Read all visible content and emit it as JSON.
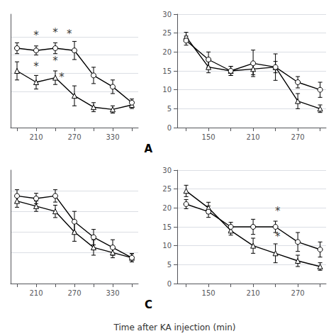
{
  "chart_data": [
    {
      "type": "line",
      "title": "A",
      "x": [
        180,
        210,
        240,
        270,
        300,
        330,
        360
      ],
      "xlim": [
        170,
        370
      ],
      "xticks": [
        {
          "value": 180,
          "label": ""
        },
        210,
        {
          "value": 240,
          "label": ""
        },
        270,
        {
          "value": 300,
          "label": ""
        },
        330,
        {
          "value": 360,
          "label": ""
        }
      ],
      "ylim": [
        0,
        25
      ],
      "yticks": [
        8,
        12,
        16,
        20
      ],
      "grid": true,
      "tick_labels": "x",
      "series": [
        {
          "marker": "triangle",
          "color": "black",
          "values": [
            12.5,
            10.0,
            11.0,
            7.0,
            4.5,
            4.0,
            5.0
          ],
          "yerr": [
            2.0,
            1.5,
            1.5,
            2.2,
            1.0,
            0.8,
            0.8
          ]
        },
        {
          "marker": "circle",
          "color": "black",
          "values": [
            17.5,
            17.0,
            17.5,
            17.0,
            11.5,
            9.0,
            5.5
          ],
          "yerr": [
            1.2,
            1.0,
            1.2,
            2.0,
            1.8,
            1.5,
            0.8
          ]
        }
      ],
      "annotations": [
        {
          "text": "*",
          "x": 210,
          "y": 19.2
        },
        {
          "text": "*",
          "x": 240,
          "y": 19.8
        },
        {
          "text": "*",
          "x": 262,
          "y": 19.5
        },
        {
          "text": "*",
          "x": 210,
          "y": 12.2
        },
        {
          "text": "*",
          "x": 240,
          "y": 13.5
        },
        {
          "text": "*",
          "x": 250,
          "y": 10.0
        }
      ]
    },
    {
      "type": "line",
      "x": [
        120,
        150,
        180,
        210,
        240,
        270,
        300
      ],
      "xlim": [
        108,
        308
      ],
      "xticks": [
        {
          "value": 120,
          "label": ""
        },
        150,
        {
          "value": 180,
          "label": ""
        },
        210,
        {
          "value": 240,
          "label": ""
        },
        270,
        {
          "value": 300,
          "label": ""
        }
      ],
      "ylim": [
        0,
        30
      ],
      "yticks": [
        0,
        5,
        10,
        15,
        20,
        25,
        30
      ],
      "grid": true,
      "series": [
        {
          "marker": "triangle",
          "color": "black",
          "values": [
            24.0,
            16.0,
            15.0,
            15.5,
            16.0,
            7.0,
            5.0
          ],
          "yerr": [
            1.2,
            1.5,
            1.2,
            1.5,
            1.5,
            2.0,
            1.0
          ]
        },
        {
          "marker": "circle",
          "color": "black",
          "values": [
            23.0,
            18.0,
            15.0,
            17.0,
            16.0,
            12.0,
            10.0
          ],
          "yerr": [
            1.2,
            2.0,
            1.2,
            3.5,
            3.5,
            1.5,
            2.0
          ]
        }
      ]
    },
    {
      "type": "line",
      "title": "C",
      "xlabel": "Time after KA injection (min)",
      "x": [
        180,
        210,
        240,
        270,
        300,
        330,
        360
      ],
      "xlim": [
        170,
        370
      ],
      "xticks": [
        {
          "value": 180,
          "label": ""
        },
        210,
        {
          "value": 240,
          "label": ""
        },
        270,
        {
          "value": 300,
          "label": ""
        },
        330,
        {
          "value": 360,
          "label": ""
        }
      ],
      "ylim": [
        0,
        22
      ],
      "yticks": [
        6,
        10,
        14,
        18
      ],
      "grid": true,
      "tick_labels": "x",
      "series": [
        {
          "marker": "triangle",
          "color": "black",
          "values": [
            16.0,
            15.0,
            14.0,
            10.0,
            7.0,
            6.0,
            5.0
          ],
          "yerr": [
            1.2,
            1.0,
            1.2,
            1.8,
            1.5,
            1.0,
            0.8
          ]
        },
        {
          "marker": "circle",
          "color": "black",
          "values": [
            17.0,
            16.5,
            17.0,
            12.0,
            9.0,
            7.0,
            5.0
          ],
          "yerr": [
            1.2,
            1.0,
            1.2,
            2.0,
            1.5,
            1.5,
            0.8
          ]
        }
      ]
    },
    {
      "type": "line",
      "x": [
        120,
        150,
        180,
        210,
        240,
        270,
        300
      ],
      "xlim": [
        108,
        308
      ],
      "xticks": [
        {
          "value": 120,
          "label": ""
        },
        150,
        {
          "value": 180,
          "label": ""
        },
        210,
        {
          "value": 240,
          "label": ""
        },
        270,
        {
          "value": 300,
          "label": ""
        }
      ],
      "ylim": [
        0,
        30
      ],
      "yticks": [
        0,
        5,
        10,
        15,
        20,
        25,
        30
      ],
      "grid": true,
      "series": [
        {
          "marker": "triangle",
          "color": "black",
          "values": [
            24.5,
            20.0,
            14.0,
            10.0,
            8.0,
            6.0,
            4.5
          ],
          "yerr": [
            1.5,
            1.5,
            1.2,
            2.0,
            2.5,
            1.5,
            1.0
          ]
        },
        {
          "marker": "circle",
          "color": "black",
          "values": [
            21.0,
            19.0,
            15.0,
            15.0,
            15.0,
            11.0,
            9.0
          ],
          "yerr": [
            1.2,
            1.5,
            1.2,
            2.0,
            1.5,
            2.5,
            2.0
          ]
        }
      ],
      "annotations": [
        {
          "text": "*",
          "x": 243,
          "y": 17.8
        },
        {
          "text": "*",
          "x": 243,
          "y": 11.0
        }
      ]
    }
  ]
}
